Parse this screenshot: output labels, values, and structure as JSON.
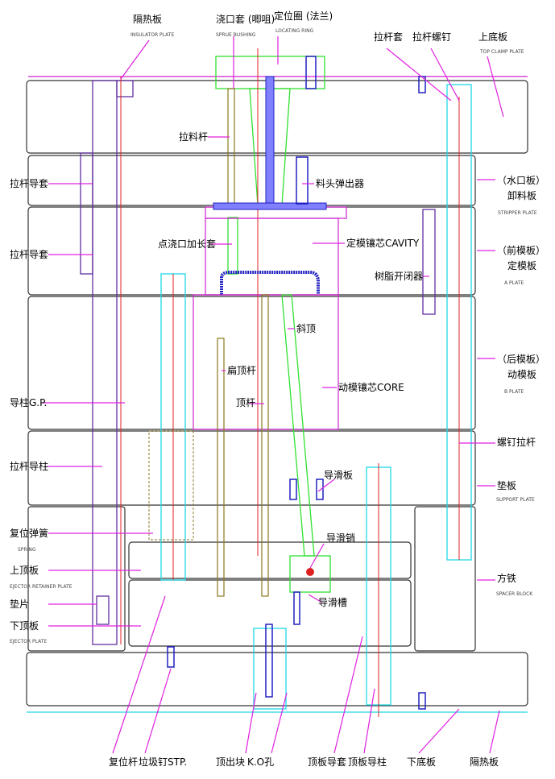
{
  "colors": {
    "leader": "#e020e0",
    "centerline": "#e02020",
    "guide": "#20d8e8",
    "lifter": "#30e030",
    "runner": "#2020c0"
  },
  "top": {
    "insulator_cn": "隔热板",
    "insulator_en": "INSULATOR PLATE",
    "sprue_cn": "浇口套 (唧咀)",
    "sprue_en": "SPRUE BUSHING",
    "ring_cn": "定位圈 (法兰)",
    "ring_en": "LOCATING RING",
    "puller_sleeve": "拉杆套",
    "puller_screw": "拉杆螺钉",
    "top_clamp_cn": "上底板",
    "top_clamp_en": "TOP CLAMP PLATE"
  },
  "right": {
    "stripper_alt": "（水口板）",
    "stripper_cn": "卸料板",
    "stripper_en": "STRIPPER PLATE",
    "a_alt": "（前模板）",
    "a_cn": "定模板",
    "a_en": "A PLATE",
    "b_alt": "（后模板）",
    "b_cn": "动模板",
    "b_en": "B PLATE",
    "screw_puller": "螺钉拉杆",
    "support_cn": "垫板",
    "support_en": "SUPPORT PLATE",
    "spacer_cn": "方铁",
    "spacer_en": "SPACER BLOCK"
  },
  "left": {
    "guide_bush_1": "拉杆导套",
    "guide_bush_2": "拉杆导套",
    "guide_pin": "导柱G.P.",
    "puller_pin": "拉杆导柱",
    "spring_cn": "复位弹簧",
    "spring_en": "SPRING",
    "retainer_cn": "上顶板",
    "retainer_en": "EJECTOR RETAINER PLATE",
    "shim": "垫片",
    "ejector_cn": "下顶板",
    "ejector_en": "EJECTOR PLATE"
  },
  "middle": {
    "sprue_puller": "拉料杆",
    "runner_ejector": "料头弹出器",
    "pin_gate_ext": "点浇口加长套",
    "cavity": "定模镶芯CAVITY",
    "parting_lock": "树脂开闭器",
    "lifter": "斜顶",
    "blade_ejector": "扁顶杆",
    "core": "动模镶芯CORE",
    "ejector_pin": "顶杆",
    "slide_plate": "导滑板",
    "slide_pin": "导滑销",
    "slide_slot": "导滑槽"
  },
  "bottom": {
    "return_pin": "复位杆",
    "stop_pin": "垃圾钉STP.",
    "ko_block": "顶出块",
    "ko_hole": "K.O孔",
    "ejector_bush": "顶板导套",
    "ejector_guide": "顶板导柱",
    "bottom_clamp": "下底板",
    "insulator": "隔热板"
  }
}
